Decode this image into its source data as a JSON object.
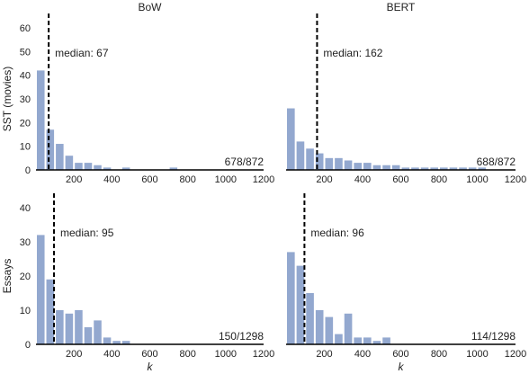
{
  "chart_data": [
    {
      "type": "bar",
      "id": "sst-bow",
      "title": "BoW",
      "ylabel": "SST (movies)",
      "xlabel": "",
      "bin_width": 50,
      "bin_starts": [
        0,
        50,
        100,
        150,
        200,
        250,
        300,
        350,
        400,
        450,
        500,
        550,
        600,
        650,
        700,
        750,
        800,
        850,
        900,
        950,
        1000,
        1050,
        1100,
        1150
      ],
      "values": [
        42,
        17,
        11,
        6,
        3,
        3,
        2,
        1,
        0,
        1,
        0,
        0,
        0,
        0,
        1,
        0,
        0,
        0,
        0,
        0,
        0,
        0,
        0,
        0
      ],
      "median": 67,
      "median_label": "median: 67",
      "count_label": "678/872",
      "xlim": [
        0,
        1200
      ],
      "ylim": [
        0,
        60
      ],
      "xticks": [
        200,
        400,
        600,
        800,
        1000,
        1200
      ],
      "yticks": [
        0,
        10,
        20,
        30,
        40,
        50,
        60
      ],
      "show_yticks": true
    },
    {
      "type": "bar",
      "id": "sst-bert",
      "title": "BERT",
      "ylabel": "",
      "xlabel": "",
      "bin_width": 50,
      "bin_starts": [
        0,
        50,
        100,
        150,
        200,
        250,
        300,
        350,
        400,
        450,
        500,
        550,
        600,
        650,
        700,
        750,
        800,
        850,
        900,
        950,
        1000,
        1050,
        1100,
        1150
      ],
      "values": [
        26,
        12,
        9,
        7,
        5,
        5,
        4,
        3,
        3,
        2,
        2,
        2,
        1,
        1,
        1,
        1,
        1,
        1,
        1,
        1,
        1,
        0,
        0,
        0
      ],
      "median": 162,
      "median_label": "median: 162",
      "count_label": "688/872",
      "xlim": [
        0,
        1200
      ],
      "ylim": [
        0,
        60
      ],
      "xticks": [
        200,
        400,
        600,
        800,
        1000,
        1200
      ],
      "yticks": [
        0,
        10,
        20,
        30,
        40,
        50,
        60
      ],
      "show_yticks": false
    },
    {
      "type": "bar",
      "id": "essays-bow",
      "title": "",
      "ylabel": "Essays",
      "xlabel": "k",
      "bin_width": 50,
      "bin_starts": [
        0,
        50,
        100,
        150,
        200,
        250,
        300,
        350,
        400,
        450,
        500,
        550,
        600,
        650,
        700,
        750,
        800,
        850,
        900,
        950,
        1000,
        1050,
        1100,
        1150
      ],
      "values": [
        32,
        19,
        10,
        9,
        10,
        5,
        7,
        2,
        1,
        1,
        0,
        0,
        0,
        0,
        0,
        0,
        0,
        0,
        0,
        0,
        0,
        0,
        0,
        0
      ],
      "median": 95,
      "median_label": "median: 95",
      "count_label": "150/1298",
      "xlim": [
        0,
        1200
      ],
      "ylim": [
        0,
        40
      ],
      "xticks": [
        200,
        400,
        600,
        800,
        1000,
        1200
      ],
      "yticks": [
        0,
        10,
        20,
        30,
        40
      ],
      "show_yticks": true
    },
    {
      "type": "bar",
      "id": "essays-bert",
      "title": "",
      "ylabel": "",
      "xlabel": "k",
      "bin_width": 50,
      "bin_starts": [
        0,
        50,
        100,
        150,
        200,
        250,
        300,
        350,
        400,
        450,
        500,
        550,
        600,
        650,
        700,
        750,
        800,
        850,
        900,
        950,
        1000,
        1050,
        1100,
        1150
      ],
      "values": [
        27,
        23,
        15,
        10,
        8,
        3,
        9,
        2,
        2,
        1,
        2,
        0,
        0,
        0,
        0,
        0,
        0,
        0,
        0,
        0,
        0,
        0,
        0,
        0
      ],
      "median": 96,
      "median_label": "median: 96",
      "count_label": "114/1298",
      "xlim": [
        0,
        1200
      ],
      "ylim": [
        0,
        40
      ],
      "xticks": [
        200,
        400,
        600,
        800,
        1000,
        1200
      ],
      "yticks": [
        0,
        10,
        20,
        30,
        40
      ],
      "show_yticks": false
    }
  ]
}
